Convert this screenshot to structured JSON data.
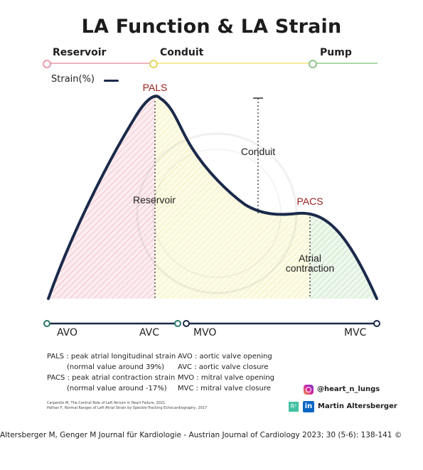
{
  "title": "LA Function & LA Strain",
  "phases": {
    "reservoir": "Reservoir",
    "conduit": "Conduit",
    "pump": "Pump"
  },
  "legend": {
    "strain_label": "Strain(%)"
  },
  "curve_labels": {
    "pals": "PALS",
    "pacs": "PACS",
    "reservoir": "Reservoir",
    "conduit": "Conduit",
    "atrial_contraction_1": "Atrial",
    "atrial_contraction_2": "contraction"
  },
  "valves": {
    "avo": "AVO",
    "avc": "AVC",
    "mvo": "MVO",
    "mvc": "MVC"
  },
  "definitions": {
    "pals_1": "PALS : peak atrial longitudinal strain",
    "pals_2": "(normal value around 39%)",
    "pacs_1": "PACS : peak atrial contraction strain",
    "pacs_2": "(normal value around -17%)",
    "avo": "AVO : aortic valve opening",
    "avc": "AVC : aortic valve closure",
    "mvo": "MVO : mitral valve opening",
    "mvc": "MVC : mitral valve closure"
  },
  "references": {
    "ref1": "Carpenito M, The Central Role of Left Atrium in Heart Failure, 2021",
    "ref2": "Pathan F, Normal Ranges of Left Atrial Strain by Speckle-Tracking Echocardiography, 2017"
  },
  "social": {
    "instagram": "@heart_n_lungs",
    "author": "Martin Altersberger",
    "rg_icon": "R²",
    "linkedin_icon": "in"
  },
  "watermark": "© Dr. Martin Altersberger",
  "caption": "Altersberger M, Genger M Journal für Kardiologie - Austrian Journal of Cardiology 2023; 30 (5-6): 138-141 ©",
  "colors": {
    "curve": "#1b2a4a",
    "reservoir_fill": "#e9a3b0",
    "conduit_fill": "#f3ec9e",
    "pump_fill": "#a9d9a9",
    "label_red": "#9b1c1c",
    "valve_line": "#1b2a4a",
    "valve_dot": "#2a7a6a"
  }
}
